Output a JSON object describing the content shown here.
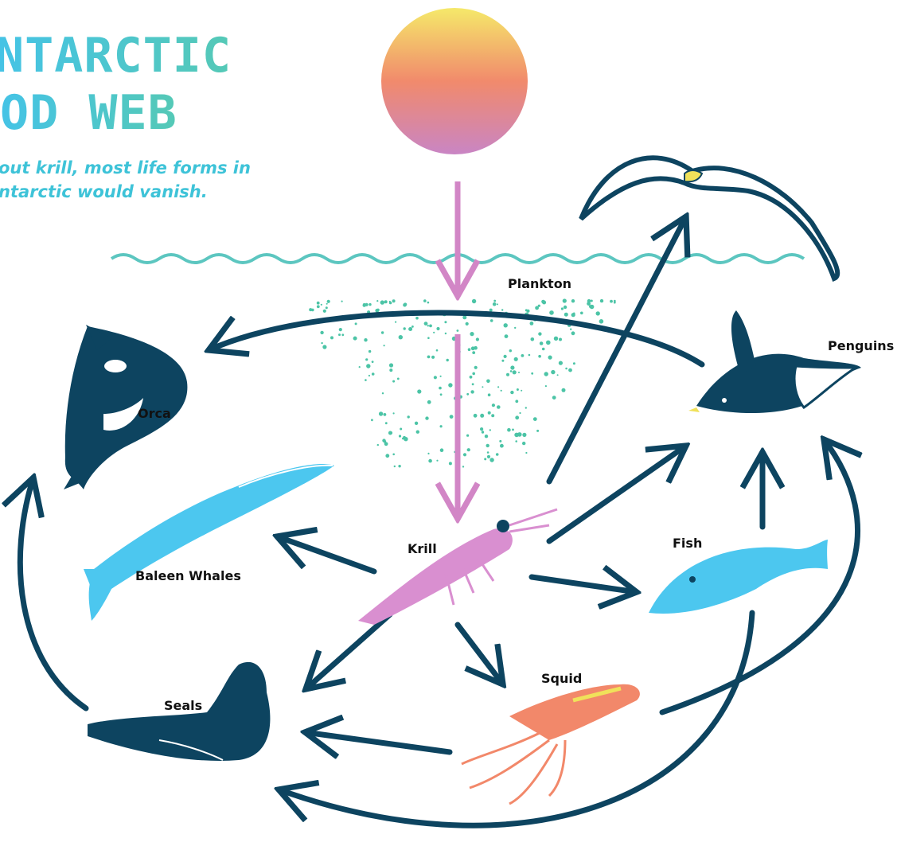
{
  "header": {
    "title_lines": [
      "NTARCTIC",
      "OD WEB"
    ],
    "subtitle_lines": [
      "out krill, most life forms in",
      "ntarctic would vanish."
    ]
  },
  "nodes": [
    {
      "label": "Plankton"
    },
    {
      "label": "Penguins"
    },
    {
      "label": "Orca"
    },
    {
      "label": "Krill"
    },
    {
      "label": "Fish"
    },
    {
      "label": "Baleen Whales"
    },
    {
      "label": "Squid"
    },
    {
      "label": "Seals"
    }
  ]
}
